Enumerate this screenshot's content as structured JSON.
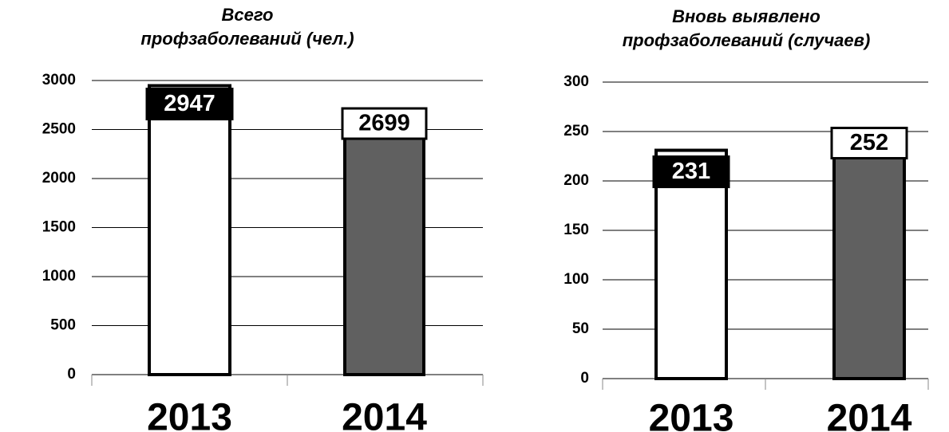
{
  "chart_data": [
    {
      "type": "bar",
      "title": [
        "Всего",
        "профзаболеваний (чел.)"
      ],
      "categories": [
        "2013",
        "2014"
      ],
      "values": [
        2947,
        2699
      ],
      "colors": [
        "#ffffff",
        "#606060"
      ],
      "label_fill": [
        "#000000",
        "#ffffff"
      ],
      "ylim": [
        0,
        3000
      ],
      "yticks": [
        0,
        500,
        1000,
        1500,
        2000,
        2500,
        3000
      ],
      "grid": true
    },
    {
      "type": "bar",
      "title": [
        "Вновь выявлено",
        "профзаболеваний (случаев)"
      ],
      "categories": [
        "2013",
        "2014"
      ],
      "values": [
        231,
        252
      ],
      "colors": [
        "#ffffff",
        "#606060"
      ],
      "label_fill": [
        "#000000",
        "#ffffff"
      ],
      "ylim": [
        0,
        300
      ],
      "yticks": [
        0,
        50,
        100,
        150,
        200,
        250,
        300
      ],
      "grid": true
    }
  ]
}
